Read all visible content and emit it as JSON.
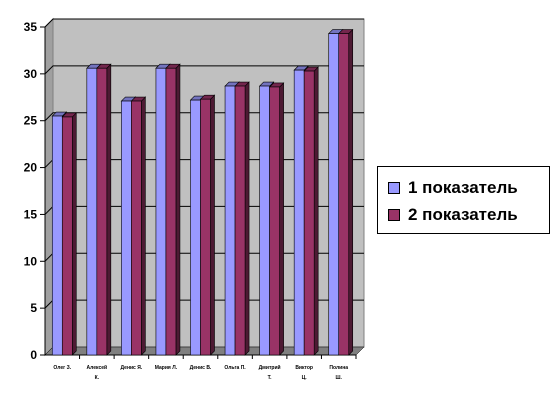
{
  "chart_data": {
    "type": "bar",
    "style": "3d-clustered-column",
    "categories": [
      [
        "Олег З."
      ],
      [
        "Алексей",
        "К."
      ],
      [
        "Денис Я."
      ],
      [
        "Мария Л."
      ],
      [
        "Денис В."
      ],
      [
        "Ольга П."
      ],
      [
        "Дмитрий",
        "Т."
      ],
      [
        "Виктор",
        "Ц."
      ],
      [
        "Полина",
        "Ш."
      ]
    ],
    "series": [
      {
        "name": "1 показатель",
        "color": "#9999ff",
        "values": [
          25.5,
          30.6,
          27.1,
          30.6,
          27.2,
          28.7,
          28.7,
          30.4,
          34.3
        ]
      },
      {
        "name": "2 показатель",
        "color": "#993366",
        "values": [
          25.4,
          30.6,
          27.1,
          30.6,
          27.3,
          28.7,
          28.6,
          30.3,
          34.3
        ]
      }
    ],
    "ylim": [
      0,
      35
    ],
    "yticks": [
      "0",
      "5",
      "10",
      "15",
      "20",
      "25",
      "30",
      "35"
    ],
    "grid": true,
    "legend_position": "right",
    "colors": {
      "wall": "#c0c0c0",
      "floor": "#808080",
      "gridline": "#000000"
    }
  }
}
